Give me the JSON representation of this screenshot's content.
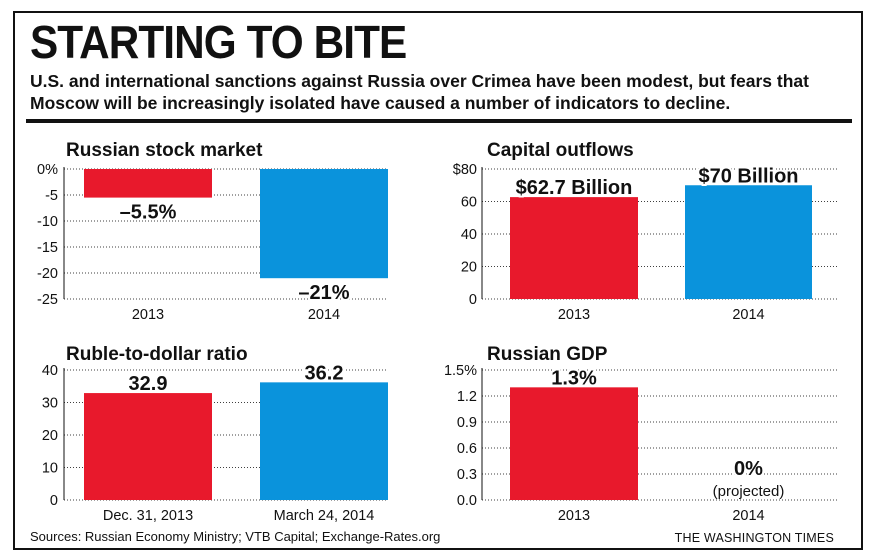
{
  "headline": "STARTING TO BITE",
  "subhead": "U.S. and international sanctions against Russia over Crimea have been modest, but fears that Moscow will be increasingly isolated have caused a number of indicators to decline.",
  "sources": "Sources: Russian Economy Ministry; VTB Capital; Exchange-Rates.org",
  "credit": "THE WASHINGTON TIMES",
  "colors": {
    "red": "#e8192c",
    "blue": "#0a93dc",
    "grid": "#000000"
  },
  "chart_data": [
    {
      "id": "stock",
      "type": "bar",
      "title": "Russian stock market",
      "categories": [
        "2013",
        "2014"
      ],
      "values": [
        -5.5,
        -21
      ],
      "data_labels": [
        "–5.5%",
        "–21%"
      ],
      "y_ticks": [
        0,
        -5,
        -10,
        -15,
        -20,
        -25
      ],
      "y_tick_labels": [
        "0%",
        "-5",
        "-10",
        "-15",
        "-20",
        "-25"
      ],
      "ylim": [
        -25,
        0
      ],
      "xlabel": "",
      "ylabel": ""
    },
    {
      "id": "capital",
      "type": "bar",
      "title": "Capital outflows",
      "categories": [
        "2013",
        "2014"
      ],
      "values": [
        62.7,
        70
      ],
      "data_labels": [
        "$62.7 Billion",
        "$70 Billion"
      ],
      "y_ticks": [
        0,
        20,
        40,
        60,
        80
      ],
      "y_tick_labels": [
        "0",
        "20",
        "40",
        "60",
        "$80"
      ],
      "ylim": [
        0,
        80
      ],
      "xlabel": "",
      "ylabel": ""
    },
    {
      "id": "ruble",
      "type": "bar",
      "title": "Ruble-to-dollar ratio",
      "categories": [
        "Dec. 31, 2013",
        "March 24, 2014"
      ],
      "values": [
        32.9,
        36.2
      ],
      "data_labels": [
        "32.9",
        "36.2"
      ],
      "y_ticks": [
        0,
        10,
        20,
        30,
        40
      ],
      "y_tick_labels": [
        "0",
        "10",
        "20",
        "30",
        "40"
      ],
      "ylim": [
        0,
        40
      ],
      "xlabel": "",
      "ylabel": ""
    },
    {
      "id": "gdp",
      "type": "bar",
      "title": "Russian GDP",
      "categories": [
        "2013",
        "2014"
      ],
      "values": [
        1.3,
        0
      ],
      "data_labels": [
        "1.3%",
        "0%"
      ],
      "annotations": [
        "",
        "(projected)"
      ],
      "y_ticks": [
        0,
        0.3,
        0.6,
        0.9,
        1.2,
        1.5
      ],
      "y_tick_labels": [
        "0.0",
        "0.3",
        "0.6",
        "0.9",
        "1.2",
        "1.5%"
      ],
      "ylim": [
        0,
        1.5
      ],
      "xlabel": "",
      "ylabel": ""
    }
  ]
}
